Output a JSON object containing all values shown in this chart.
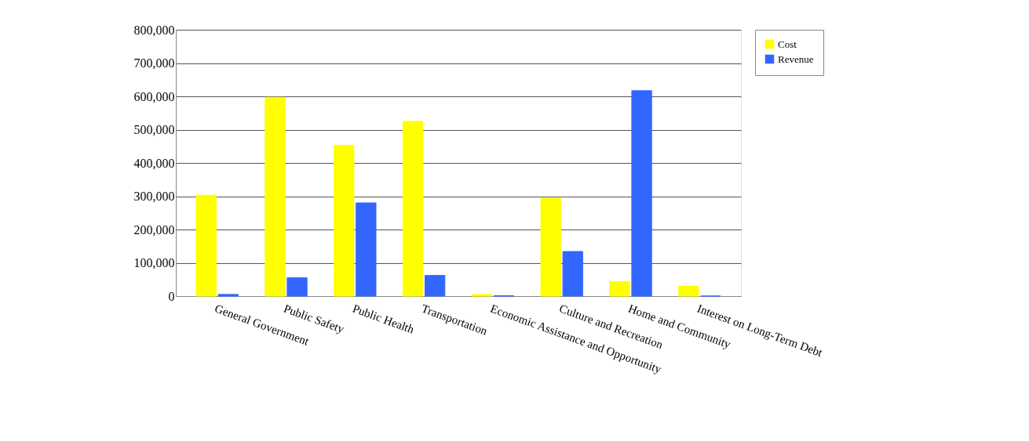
{
  "chart_data": {
    "type": "bar",
    "categories": [
      "General Government",
      "Public Safety",
      "Public Health",
      "Transportation",
      "Economic Assistance and Opportunity",
      "Culture and Recreation",
      "Home and Community",
      "Interest on Long-Term Debt"
    ],
    "series": [
      {
        "name": "Cost",
        "color": "#ffff00",
        "values": [
          303000,
          597000,
          453000,
          525000,
          5000,
          294000,
          44000,
          30000
        ]
      },
      {
        "name": "Revenue",
        "color": "#3366ff",
        "values": [
          5000,
          55000,
          280000,
          62000,
          1000,
          134000,
          617000,
          0
        ]
      }
    ],
    "ylim": [
      0,
      800000
    ],
    "yticks": [
      0,
      {
        "value": 100000,
        "label": "100,000"
      },
      {
        "value": 200000,
        "label": "200,000"
      },
      {
        "value": 300000,
        "label": "300,000"
      },
      {
        "value": 400000,
        "label": "400,000"
      },
      {
        "value": 500000,
        "label": "500,000"
      },
      {
        "value": 600000,
        "label": "600,000"
      },
      {
        "value": 700000,
        "label": "700,000"
      },
      {
        "value": 800000,
        "label": "800,000"
      }
    ],
    "grid": "y",
    "legend": "right"
  }
}
